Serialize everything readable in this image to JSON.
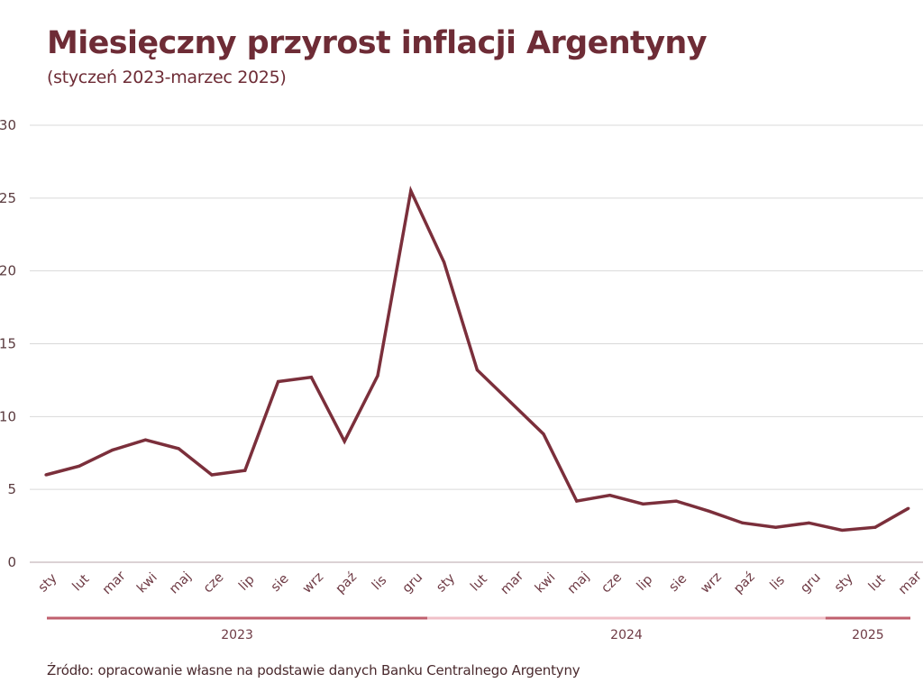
{
  "title": "Miesięczny przyrost inflacji Argentyny",
  "subtitle": "(styczeń 2023-marzec 2025)",
  "source": "Źródło: opracowanie własne na podstawie danych Banku Centralnego Argentyny",
  "colors": {
    "line": "#7b2f3b",
    "title": "#6e2c36",
    "grid": "#d9d9d9",
    "year_dark": "#c0606e",
    "year_light": "#f0c0c8"
  },
  "chart_data": {
    "type": "line",
    "title": "Miesięczny przyrost inflacji Argentyny",
    "subtitle": "(styczeń 2023-marzec 2025)",
    "xlabel": "",
    "ylabel": "",
    "ylim": [
      0,
      30
    ],
    "yticks": [
      "0",
      "5",
      "10",
      "15",
      "20",
      "25",
      "30"
    ],
    "grid": true,
    "legend": "none",
    "categories": [
      "sty",
      "lut",
      "mar",
      "kwi",
      "maj",
      "cze",
      "lip",
      "sie",
      "wrz",
      "paź",
      "lis",
      "gru",
      "sty",
      "lut",
      "mar",
      "kwi",
      "maj",
      "cze",
      "lip",
      "sie",
      "wrz",
      "paź",
      "lis",
      "gru",
      "sty",
      "lut",
      "mar"
    ],
    "years": [
      {
        "label": "2023",
        "start": 0,
        "end": 11,
        "shade": "dark"
      },
      {
        "label": "2024",
        "start": 12,
        "end": 23,
        "shade": "light"
      },
      {
        "label": "2025",
        "start": 24,
        "end": 26,
        "shade": "dark"
      }
    ],
    "series": [
      {
        "name": "Miesięczny przyrost inflacji",
        "values": [
          6.0,
          6.6,
          7.7,
          8.4,
          7.8,
          6.0,
          6.3,
          12.4,
          12.7,
          8.3,
          12.8,
          25.5,
          20.6,
          13.2,
          11.0,
          8.8,
          4.2,
          4.6,
          4.0,
          4.2,
          3.5,
          2.7,
          2.4,
          2.7,
          2.2,
          2.4,
          3.7
        ]
      }
    ]
  }
}
